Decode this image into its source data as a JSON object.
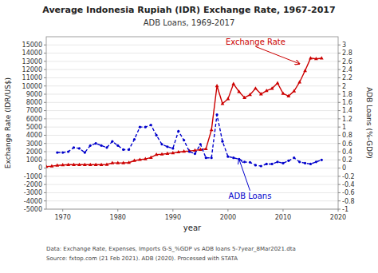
{
  "chart_data": {
    "type": "line",
    "title": "Average Indonesia Rupiah (IDR) Exchange Rate, 1967-2017",
    "subtitle": "ADB Loans, 1969-2017",
    "xlabel": "year",
    "ylabel": "Exchange Rate (IDR/US$)",
    "y2label": "ADB Loans (%-GDP)",
    "source": [
      "Data: Exchange Rate, Expenses, Imports G-S_%GDP vs ADB loans 5-7year_8Mar2021.dta",
      "Source: fxtop.com (21 Feb 2021). ADB (2020). Processed with STATA"
    ],
    "xlim": [
      1967,
      2020
    ],
    "ylim": [
      -5000,
      16000
    ],
    "y2lim": [
      -1,
      3.2
    ],
    "xticks": [
      1970,
      1980,
      1990,
      2000,
      2010,
      2020
    ],
    "yticks": [
      -5000,
      -4000,
      -3000,
      -2000,
      -1000,
      0,
      1000,
      2000,
      3000,
      4000,
      5000,
      6000,
      7000,
      8000,
      9000,
      10000,
      11000,
      12000,
      13000,
      14000,
      15000
    ],
    "y2ticks": [
      -1,
      -0.8,
      -0.6,
      -0.4,
      -0.2,
      0,
      0.2,
      0.4,
      0.6,
      0.8,
      1.0,
      1.2,
      1.4,
      1.6,
      1.8,
      2.0,
      2.2,
      2.4,
      2.6,
      2.8,
      3.0
    ],
    "grid": true,
    "series": [
      {
        "name": "Exchange Rate",
        "color": "#cc0000",
        "axis": "y",
        "marker": "triangle",
        "line_style": "solid",
        "x": [
          1967,
          1968,
          1969,
          1970,
          1971,
          1972,
          1973,
          1974,
          1975,
          1976,
          1977,
          1978,
          1979,
          1980,
          1981,
          1982,
          1983,
          1984,
          1985,
          1986,
          1987,
          1988,
          1989,
          1990,
          1991,
          1992,
          1993,
          1994,
          1995,
          1996,
          1997,
          1998,
          1999,
          2000,
          2001,
          2002,
          2003,
          2004,
          2005,
          2006,
          2007,
          2008,
          2009,
          2010,
          2011,
          2012,
          2013,
          2014,
          2015,
          2016,
          2017
        ],
        "values": [
          178,
          235,
          326,
          378,
          415,
          415,
          415,
          415,
          415,
          415,
          415,
          442,
          623,
          627,
          632,
          661,
          909,
          1026,
          1111,
          1283,
          1644,
          1686,
          1770,
          1843,
          1950,
          2030,
          2087,
          2161,
          2248,
          2342,
          4650,
          10014,
          7855,
          8422,
          10261,
          9311,
          8577,
          8939,
          9705,
          9020,
          9419,
          9699,
          10356,
          9090,
          8770,
          9386,
          10461,
          11865,
          13389,
          13308,
          13381
        ],
        "annotation": {
          "x": 2013,
          "y": 12700,
          "text_x": 2005,
          "text_y": 14800
        }
      },
      {
        "name": "ADB Loans",
        "color": "#0000cc",
        "axis": "y2",
        "marker": "circle",
        "line_style": "dashed",
        "x": [
          1969,
          1970,
          1971,
          1972,
          1973,
          1974,
          1975,
          1976,
          1977,
          1978,
          1979,
          1980,
          1981,
          1982,
          1983,
          1984,
          1985,
          1986,
          1987,
          1988,
          1989,
          1990,
          1991,
          1992,
          1993,
          1994,
          1995,
          1996,
          1997,
          1998,
          1999,
          2000,
          2001,
          2002,
          2003,
          2004,
          2005,
          2006,
          2007,
          2008,
          2009,
          2010,
          2011,
          2012,
          2013,
          2014,
          2015,
          2016,
          2017
        ],
        "values": [
          0.38,
          0.38,
          0.4,
          0.5,
          0.48,
          0.38,
          0.55,
          0.6,
          0.55,
          0.5,
          0.65,
          0.55,
          0.45,
          0.45,
          0.7,
          1.0,
          1.0,
          1.05,
          0.8,
          0.58,
          0.52,
          0.48,
          0.9,
          0.68,
          0.4,
          0.35,
          0.58,
          0.25,
          0.25,
          1.3,
          0.65,
          0.28,
          0.25,
          0.22,
          0.15,
          0.14,
          0.07,
          0.05,
          0.1,
          0.1,
          0.15,
          0.12,
          0.18,
          0.25,
          0.15,
          0.12,
          0.1,
          0.15,
          0.2
        ],
        "annotation": {
          "x": 2002,
          "y": 0.22,
          "text_x": 2004,
          "text_y": -0.55
        }
      }
    ]
  }
}
